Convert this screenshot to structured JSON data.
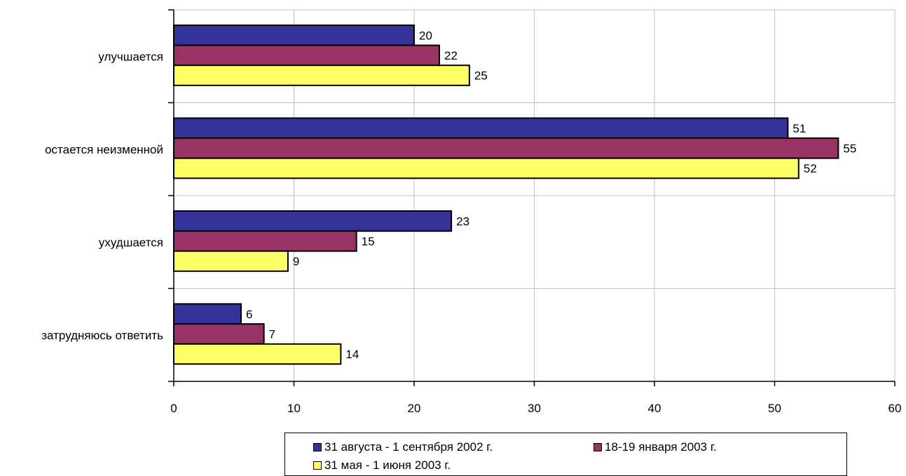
{
  "chart_data": {
    "type": "bar",
    "orientation": "horizontal",
    "title": "",
    "xlabel": "",
    "ylabel": "",
    "categories": [
      "улучшается",
      "остается неизменной",
      "ухудшается",
      "затрудняюсь ответить"
    ],
    "series": [
      {
        "name": "31 августа - 1 сентября 2002 г.",
        "color": "#333399",
        "values": [
          20,
          51,
          23,
          6
        ]
      },
      {
        "name": "18-19 января 2003 г.",
        "color": "#993366",
        "values": [
          22,
          55,
          15,
          7
        ]
      },
      {
        "name": "31 мая - 1 июня 2003 г.",
        "color": "#FFFF66",
        "values": [
          25,
          52,
          9,
          14
        ]
      }
    ],
    "bar_lengths": [
      [
        20,
        51.1,
        23.1,
        5.6
      ],
      [
        22.1,
        55.3,
        15.2,
        7.5
      ],
      [
        24.6,
        52,
        9.5,
        13.9
      ]
    ],
    "data_labels": [
      [
        "20",
        "51",
        "23",
        "6"
      ],
      [
        "22",
        "55",
        "15",
        "7"
      ],
      [
        "25",
        "52",
        "9",
        "14"
      ]
    ],
    "xlim": [
      0,
      60
    ],
    "xticks": [
      0,
      10,
      20,
      30,
      40,
      50,
      60
    ],
    "xtick_labels": [
      "0",
      "10",
      "20",
      "30",
      "40",
      "50",
      "60"
    ],
    "grid": true,
    "legend_position": "bottom"
  }
}
